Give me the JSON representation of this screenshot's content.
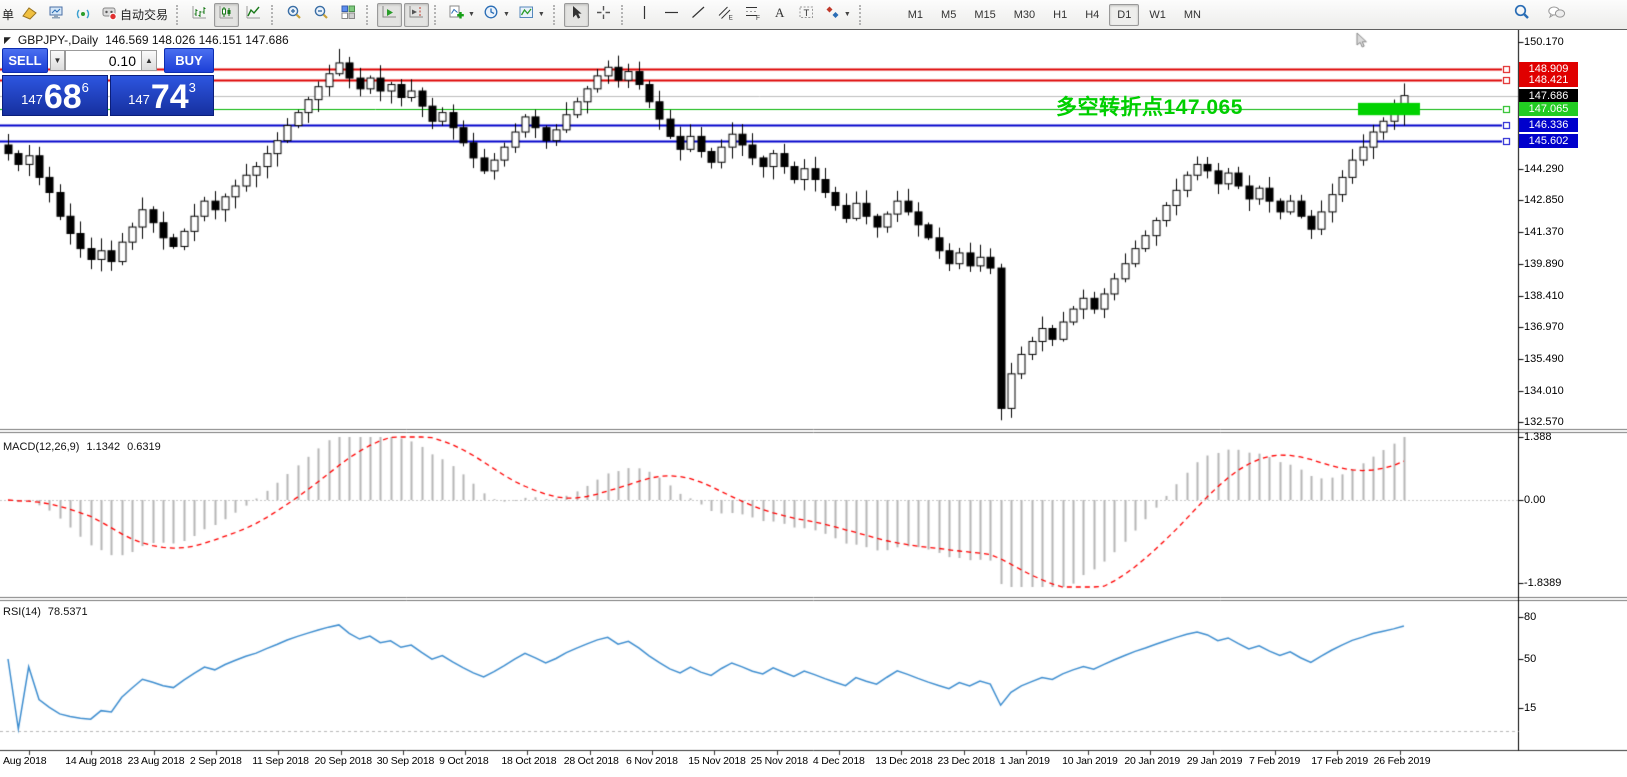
{
  "toolbar": {
    "groups": [
      {
        "items": [
          {
            "name": "new-order-button",
            "icon": "cut-text",
            "label": "单",
            "cut": true
          },
          {
            "name": "gold-button",
            "icon": "gold"
          },
          {
            "name": "metaeditor-button",
            "icon": "monitor"
          },
          {
            "name": "signal-button",
            "icon": "signal"
          },
          {
            "name": "autotrading-button",
            "icon": "autotrading",
            "label": "自动交易"
          }
        ]
      },
      {
        "items": [
          {
            "name": "bar-chart-button",
            "icon": "barchart"
          },
          {
            "name": "candlestick-chart-button",
            "icon": "candles",
            "active": true
          },
          {
            "name": "line-chart-button",
            "icon": "linechart"
          }
        ]
      },
      {
        "items": [
          {
            "name": "zoom-in-button",
            "icon": "zoomin"
          },
          {
            "name": "zoom-out-button",
            "icon": "zoomout"
          },
          {
            "name": "tile-windows-button",
            "icon": "tiles"
          }
        ]
      },
      {
        "items": [
          {
            "name": "auto-scroll-button",
            "icon": "autoscroll",
            "active": true
          },
          {
            "name": "chart-shift-button",
            "icon": "chartshift",
            "active": true
          }
        ]
      },
      {
        "items": [
          {
            "name": "indicators-button",
            "icon": "indicators",
            "caret": true
          },
          {
            "name": "periods-button",
            "icon": "clock",
            "caret": true
          },
          {
            "name": "templates-button",
            "icon": "template",
            "caret": true
          }
        ]
      },
      {
        "items": [
          {
            "name": "cursor-button",
            "icon": "cursor",
            "active": true
          },
          {
            "name": "crosshair-button",
            "icon": "crosshair"
          }
        ]
      },
      {
        "items": [
          {
            "name": "vertical-line-button",
            "icon": "vline"
          },
          {
            "name": "horizontal-line-button",
            "icon": "hline"
          },
          {
            "name": "trendline-button",
            "icon": "tline"
          },
          {
            "name": "channel-button",
            "icon": "channel"
          },
          {
            "name": "fibonacci-button",
            "icon": "fibo"
          },
          {
            "name": "text-button",
            "icon": "textA"
          },
          {
            "name": "label-button",
            "icon": "labelT"
          },
          {
            "name": "arrows-button",
            "icon": "arrows",
            "caret": true
          }
        ]
      }
    ],
    "timeframes": [
      "M1",
      "M5",
      "M15",
      "M30",
      "H1",
      "H4",
      "D1",
      "W1",
      "MN"
    ],
    "active_timeframe": "D1",
    "right_icons": [
      {
        "name": "search-button",
        "icon": "search"
      },
      {
        "name": "chat-button",
        "icon": "chat"
      }
    ]
  },
  "chart_header": {
    "title": "GBPJPY-,Daily",
    "ohlc": "146.569 148.026 146.151 147.686"
  },
  "trade_panel": {
    "sell_label": "SELL",
    "buy_label": "BUY",
    "volume": "0.10",
    "spin_down": "▼",
    "spin_up": "▲",
    "sell_small": "147",
    "sell_big": "68",
    "sell_sup": "6",
    "buy_small": "147",
    "buy_big": "74",
    "buy_sup": "3"
  },
  "annotation": {
    "text": "多空转折点147.065",
    "color": "#00cf00"
  },
  "macd_header": {
    "name": "MACD(12,26,9)",
    "value_main": "1.1342",
    "value_signal": "0.6319"
  },
  "rsi_header": {
    "name": "RSI(14)",
    "value": "78.5371"
  },
  "chart_data": {
    "type": "candlestick",
    "symbol": "GBPJPY-",
    "timeframe": "Daily",
    "ohlc_display": {
      "open": "146.569",
      "high": "148.026",
      "low": "146.151",
      "close": "147.686"
    },
    "price_range_top": 150.17,
    "price_range_bottom": 132.57,
    "closes": [
      145.0,
      144.5,
      144.9,
      143.9,
      143.2,
      142.1,
      141.3,
      140.6,
      140.1,
      140.5,
      140.0,
      140.9,
      141.6,
      142.4,
      141.8,
      141.1,
      140.7,
      141.4,
      142.1,
      142.8,
      142.4,
      143.0,
      143.5,
      144.0,
      144.4,
      145.0,
      145.6,
      146.3,
      146.9,
      147.5,
      148.1,
      148.7,
      149.2,
      148.5,
      148.0,
      148.5,
      147.9,
      148.2,
      147.6,
      147.9,
      147.2,
      146.5,
      146.9,
      146.2,
      145.5,
      144.8,
      144.2,
      144.7,
      145.3,
      146.0,
      146.7,
      146.2,
      145.6,
      146.1,
      146.8,
      147.4,
      148.0,
      148.6,
      149.0,
      148.4,
      148.8,
      148.2,
      147.4,
      146.6,
      145.8,
      145.2,
      145.8,
      145.1,
      144.6,
      145.3,
      145.9,
      145.4,
      144.8,
      144.4,
      145.0,
      144.4,
      143.8,
      144.3,
      143.8,
      143.2,
      142.6,
      142.0,
      142.7,
      142.1,
      141.6,
      142.2,
      142.8,
      142.3,
      141.7,
      141.1,
      140.5,
      139.9,
      140.4,
      139.8,
      140.2,
      139.7,
      133.2,
      134.8,
      135.7,
      136.3,
      136.9,
      136.4,
      137.2,
      137.8,
      138.3,
      137.8,
      138.5,
      139.2,
      139.9,
      140.6,
      141.2,
      141.9,
      142.6,
      143.3,
      144.0,
      144.5,
      144.2,
      143.6,
      144.1,
      143.5,
      142.9,
      143.4,
      142.8,
      142.3,
      142.8,
      142.1,
      141.5,
      142.3,
      143.1,
      143.9,
      144.7,
      145.3,
      146.0,
      146.5,
      147.0,
      147.686
    ],
    "high_overrides": {
      "32": 149.85,
      "96": 139.9,
      "135": 148.25
    },
    "low_overrides": {
      "96": 132.65,
      "135": 146.3
    },
    "price_ticks": [
      "150.170",
      "144.290",
      "142.850",
      "141.370",
      "139.890",
      "138.410",
      "136.970",
      "135.490",
      "134.010",
      "132.570"
    ],
    "hlines": [
      {
        "price": 148.909,
        "color": "#dd0000",
        "width": 2
      },
      {
        "price": 148.421,
        "color": "#dd0000",
        "width": 2
      },
      {
        "price": 147.686,
        "color": "#bdbdbd",
        "width": 1,
        "role": "current-price"
      },
      {
        "price": 147.065,
        "color": "#00b400",
        "width": 1
      },
      {
        "price": 146.336,
        "color": "#0000cc",
        "width": 2
      },
      {
        "price": 145.602,
        "color": "#0000cc",
        "width": 2
      }
    ],
    "badges": [
      {
        "text": "148.909",
        "price": 148.909,
        "color": "#e00000"
      },
      {
        "text": "148.421",
        "price": 148.421,
        "color": "#e00000"
      },
      {
        "text": "147.686",
        "price": 147.686,
        "color": "#000000"
      },
      {
        "text": "147.065",
        "price": 147.065,
        "color": "#22cc22"
      },
      {
        "text": "146.336",
        "price": 146.336,
        "color": "#0000cc"
      },
      {
        "text": "145.602",
        "price": 145.602,
        "color": "#0000cc"
      }
    ],
    "highlight_rect": {
      "color": "#00d200",
      "price_top": 147.35,
      "price_bottom": 146.78
    },
    "macd": {
      "params": [
        12,
        26,
        9
      ],
      "axis": [
        "1.388",
        "0.00",
        "-1.8389"
      ],
      "axis_values": [
        1.388,
        0,
        -1.8389
      ],
      "histogram_color": "#b6b6b6",
      "signal_color": "#ff0000"
    },
    "rsi": {
      "period": 14,
      "axis": [
        "80",
        "50",
        "15"
      ],
      "axis_values": [
        80,
        50,
        15
      ],
      "line_color": "#3e8ed0"
    },
    "time_labels": [
      "Aug 2018",
      "14 Aug 2018",
      "23 Aug 2018",
      "2 Sep 2018",
      "11 Sep 2018",
      "20 Sep 2018",
      "30 Sep 2018",
      "9 Oct 2018",
      "18 Oct 2018",
      "28 Oct 2018",
      "6 Nov 2018",
      "15 Nov 2018",
      "25 Nov 2018",
      "4 Dec 2018",
      "13 Dec 2018",
      "23 Dec 2018",
      "1 Jan 2019",
      "10 Jan 2019",
      "20 Jan 2019",
      "29 Jan 2019",
      "7 Feb 2019",
      "17 Feb 2019",
      "26 Feb 2019"
    ]
  }
}
